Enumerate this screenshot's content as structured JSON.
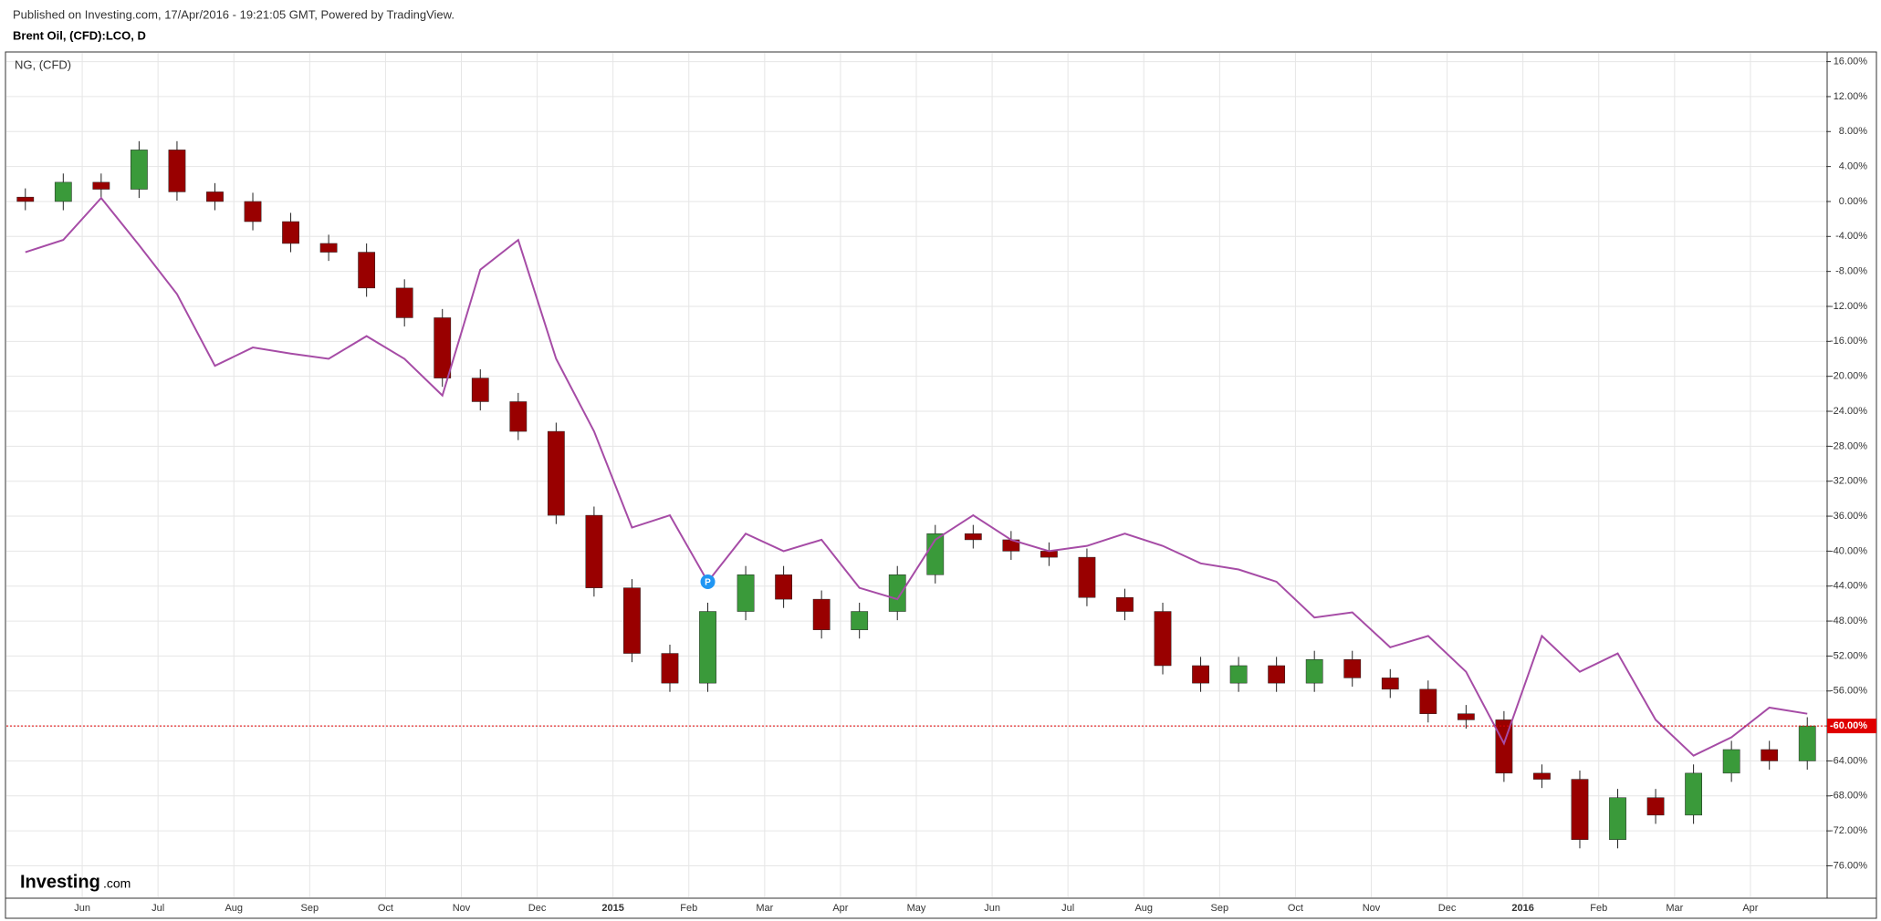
{
  "header": {
    "published": "Published on Investing.com, 17/Apr/2016 - 19:21:05 GMT, Powered by TradingView.",
    "symbol": "Brent Oil, (CFD):LCO, D"
  },
  "logo": {
    "name": "Investing",
    "suffix": ".com"
  },
  "chart_data": {
    "type": "candlestick",
    "categories": [
      null,
      null,
      "Jun",
      null,
      "Jul",
      null,
      "Aug",
      null,
      "Sep",
      null,
      "Oct",
      null,
      "Nov",
      null,
      "Dec",
      null,
      "2015",
      null,
      "Feb",
      null,
      "Mar",
      null,
      "Apr",
      null,
      "May",
      null,
      "Jun",
      null,
      "Jul",
      null,
      "Aug",
      null,
      "Sep",
      null,
      "Oct",
      null,
      "Nov",
      null,
      "Dec",
      null,
      "2016",
      null,
      "Feb",
      null,
      "Mar",
      null,
      "Apr",
      null
    ],
    "bold_categories": [
      "2015",
      "2016"
    ],
    "series": [
      {
        "name": "Brent Oil",
        "up_color": "#3a9a3a",
        "down_color": "#990000",
        "open": [
          0.5,
          0,
          2.2,
          1.4,
          5.9,
          1.1,
          0,
          -2.3,
          -4.8,
          -5.8,
          -9.9,
          -13.3,
          -20.2,
          -22.9,
          -26.3,
          -35.9,
          -44.2,
          -51.7,
          -55.1,
          -46.9,
          -42.7,
          -45.5,
          -49,
          -46.9,
          -42.7,
          -38,
          -38.7,
          -40,
          -40.7,
          -45.3,
          -46.9,
          -53.1,
          -55.1,
          -53.1,
          -55.1,
          -52.4,
          -54.5,
          -55.8,
          -58.6,
          -59.3,
          -65.4,
          -66.1,
          -73,
          -68.2,
          -70.2,
          -65.4,
          -62.7,
          -64
        ],
        "high": [
          1.5,
          3.2,
          3.2,
          6.9,
          6.9,
          2.1,
          1,
          -1.3,
          -3.8,
          -4.8,
          -8.9,
          -12.3,
          -19.2,
          -21.9,
          -25.3,
          -34.9,
          -43.2,
          -50.7,
          -45.9,
          -41.7,
          -41.7,
          -44.5,
          -45.9,
          -41.7,
          -37,
          -37,
          -37.7,
          -39,
          -39.7,
          -44.3,
          -45.9,
          -52.1,
          -52.1,
          -52.1,
          -51.4,
          -51.4,
          -53.5,
          -54.8,
          -57.6,
          -58.3,
          -64.4,
          -65.1,
          -67.2,
          -67.2,
          -64.4,
          -61.7,
          -61.7,
          -59
        ],
        "low": [
          -1,
          -1,
          0.4,
          0.4,
          0.1,
          -1,
          -3.3,
          -5.8,
          -6.8,
          -10.9,
          -14.3,
          -21.2,
          -23.9,
          -27.3,
          -36.9,
          -45.2,
          -52.7,
          -56.1,
          -56.1,
          -47.9,
          -46.5,
          -50,
          -50,
          -47.9,
          -43.7,
          -39.7,
          -41,
          -41.7,
          -46.3,
          -47.9,
          -54.1,
          -56.1,
          -56.1,
          -56.1,
          -56.1,
          -55.5,
          -56.8,
          -59.6,
          -60.3,
          -66.4,
          -67.1,
          -74,
          -74,
          -71.2,
          -71.2,
          -66.4,
          -65,
          -65
        ],
        "close": [
          0,
          2.2,
          1.4,
          5.9,
          1.1,
          0,
          -2.3,
          -4.8,
          -5.8,
          -9.9,
          -13.3,
          -20.2,
          -22.9,
          -26.3,
          -35.9,
          -44.2,
          -51.7,
          -55.1,
          -46.9,
          -42.7,
          -45.5,
          -49,
          -46.9,
          -42.7,
          -38,
          -38.7,
          -40,
          -40.7,
          -45.3,
          -46.9,
          -53.1,
          -55.1,
          -53.1,
          -55.1,
          -52.4,
          -54.5,
          -55.8,
          -58.6,
          -59.3,
          -65.4,
          -66.1,
          -73,
          -68.2,
          -70.2,
          -65.4,
          -62.7,
          -64,
          -60
        ]
      },
      {
        "name": "NG,  (CFD)",
        "type": "line",
        "color": "#a64ca6",
        "values": [
          -5.8,
          -4.4,
          0.4,
          -5,
          -10.6,
          -18.8,
          -16.7,
          -17.4,
          -18,
          -15.4,
          -18,
          -22.2,
          -7.8,
          -4.4,
          -18,
          -26.3,
          -37.3,
          -35.9,
          -43.5,
          -38,
          -40,
          -38.7,
          -44.2,
          -45.5,
          -38.7,
          -35.9,
          -38.7,
          -40,
          -39.4,
          -38,
          -39.4,
          -41.4,
          -42.1,
          -43.5,
          -47.6,
          -47,
          -51,
          -49.7,
          -53.8,
          -62,
          -49.7,
          -53.8,
          -51.7,
          -59.3,
          -63.4,
          -61.3,
          -57.9,
          -58.6
        ]
      }
    ],
    "last_value": {
      "value": -60,
      "label": "-60.00%",
      "color": "#e00000"
    },
    "marker": {
      "index": 18,
      "value": -43.5,
      "label": "P",
      "color": "#2196f3"
    },
    "ylim": [
      -79.6,
      17
    ],
    "yticks": [
      {
        "value": 16,
        "label": "16.00%"
      },
      {
        "value": 12,
        "label": "12.00%"
      },
      {
        "value": 8,
        "label": "8.00%"
      },
      {
        "value": 4,
        "label": "4.00%"
      },
      {
        "value": 0,
        "label": "0.00%"
      },
      {
        "value": -4,
        "label": "-4.00%"
      },
      {
        "value": -8,
        "label": "-8.00%"
      },
      {
        "value": -12,
        "label": "-12.00%"
      },
      {
        "value": -16,
        "label": "-16.00%"
      },
      {
        "value": -20,
        "label": "-20.00%"
      },
      {
        "value": -24,
        "label": "-24.00%"
      },
      {
        "value": -28,
        "label": "-28.00%"
      },
      {
        "value": -32,
        "label": "-32.00%"
      },
      {
        "value": -36,
        "label": "-36.00%"
      },
      {
        "value": -40,
        "label": "-40.00%"
      },
      {
        "value": -44,
        "label": "-44.00%"
      },
      {
        "value": -48,
        "label": "-48.00%"
      },
      {
        "value": -52,
        "label": "-52.00%"
      },
      {
        "value": -56,
        "label": "-56.00%"
      },
      {
        "value": -60,
        "label": "-60.00%"
      },
      {
        "value": -64,
        "label": "-64.00%"
      },
      {
        "value": -68,
        "label": "-68.00%"
      },
      {
        "value": -72,
        "label": "-72.00%"
      },
      {
        "value": -76,
        "label": "-76.00%"
      }
    ],
    "grid": true
  }
}
